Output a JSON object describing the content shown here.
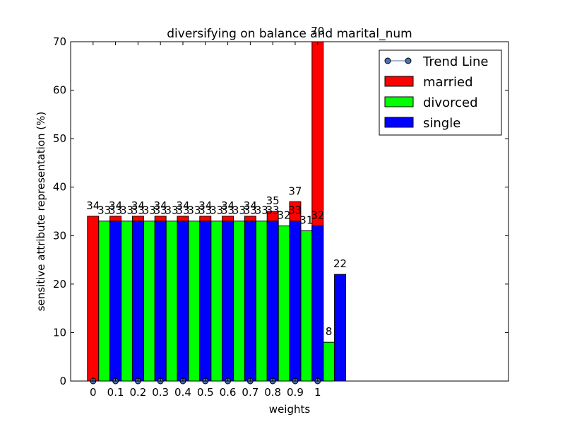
{
  "chart_data": {
    "type": "bar",
    "title": "diversifying on balance and marital_num",
    "xlabel": "weights",
    "ylabel": "sensitive attribute representation (%)",
    "ylim": [
      0,
      70
    ],
    "xlim": [
      -0.1,
      1.85
    ],
    "yticks": [
      0,
      10,
      20,
      30,
      40,
      50,
      60,
      70
    ],
    "categories": [
      "0",
      "0.1",
      "0.2",
      "0.3",
      "0.4",
      "0.5",
      "0.6",
      "0.7",
      "0.8",
      "0.9",
      "1"
    ],
    "series": [
      {
        "name": "married",
        "color": "#ff0000",
        "values": [
          34,
          34,
          34,
          34,
          34,
          34,
          34,
          34,
          35,
          37,
          70
        ]
      },
      {
        "name": "divorced",
        "color": "#00ff00",
        "values": [
          33,
          33,
          33,
          33,
          33,
          33,
          33,
          33,
          32,
          31,
          8
        ]
      },
      {
        "name": "single",
        "color": "#0000ff",
        "values": [
          33,
          33,
          33,
          33,
          33,
          33,
          33,
          33,
          33,
          32,
          22
        ]
      }
    ],
    "trend_line": {
      "name": "Trend Line",
      "color": "#4c72b0",
      "values": [
        0,
        0,
        0,
        0,
        0,
        0,
        0,
        0,
        0,
        0,
        0
      ]
    },
    "legend": {
      "position": "top-right",
      "entries": [
        "Trend Line",
        "married",
        "divorced",
        "single"
      ]
    },
    "grid": false
  }
}
